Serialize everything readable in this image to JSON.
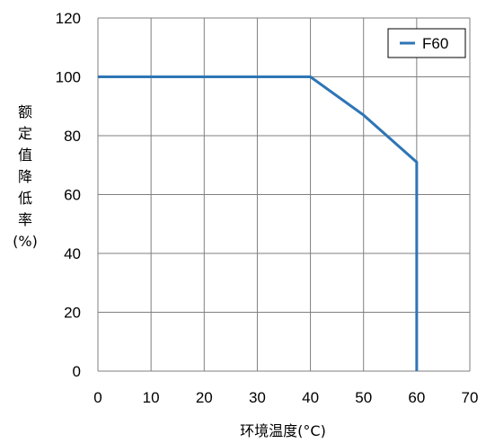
{
  "chart_data": {
    "type": "line",
    "title": "",
    "xlabel": "环境温度(°C)",
    "ylabel": "额定值降低率(%)",
    "xlim": [
      0,
      70
    ],
    "ylim": [
      0,
      120
    ],
    "xticks": [
      0,
      10,
      20,
      30,
      40,
      50,
      60,
      70
    ],
    "yticks": [
      0,
      20,
      40,
      60,
      80,
      100,
      120
    ],
    "grid": true,
    "legend_position": "top-right",
    "series": [
      {
        "name": "F60",
        "color": "#2e75b6",
        "x": [
          0,
          40,
          50,
          60,
          60
        ],
        "y": [
          100,
          100,
          87,
          71,
          0
        ]
      }
    ]
  },
  "colors": {
    "grid": "#7f7f7f",
    "axis": "#7f7f7f",
    "series": "#2e75b6"
  }
}
